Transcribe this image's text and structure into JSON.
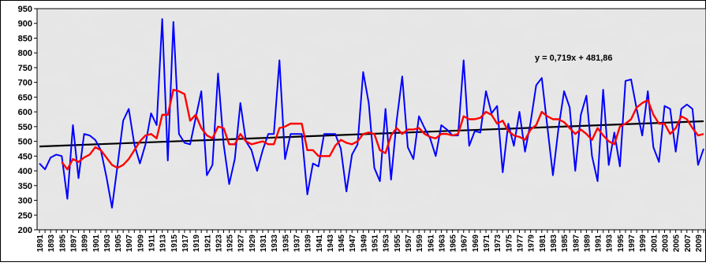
{
  "chart_data": {
    "type": "line",
    "title": "",
    "xlabel": "",
    "ylabel": "",
    "ylim": [
      200,
      950
    ],
    "yticks": [
      200,
      250,
      300,
      350,
      400,
      450,
      500,
      550,
      600,
      650,
      700,
      750,
      800,
      850,
      900,
      950
    ],
    "xlim": [
      1891,
      2010
    ],
    "xtick_labels": [
      1891,
      1893,
      1895,
      1897,
      1899,
      1901,
      1903,
      1905,
      1907,
      1909,
      1911,
      1913,
      1915,
      1917,
      1919,
      1921,
      1923,
      1925,
      1927,
      1929,
      1931,
      1933,
      1935,
      1937,
      1939,
      1941,
      1943,
      1945,
      1947,
      1949,
      1951,
      1953,
      1955,
      1957,
      1959,
      1961,
      1963,
      1965,
      1967,
      1969,
      1971,
      1973,
      1975,
      1977,
      1979,
      1981,
      1983,
      1985,
      1987,
      1989,
      1991,
      1993,
      1995,
      1997,
      1999,
      2001,
      2003,
      2005,
      2007,
      2009
    ],
    "grid": false,
    "background": "marble-texture",
    "series": [
      {
        "style": "annual",
        "color": "#0000ff",
        "x": [
          1891,
          1892,
          1893,
          1894,
          1895,
          1896,
          1897,
          1898,
          1899,
          1900,
          1901,
          1902,
          1903,
          1904,
          1905,
          1906,
          1907,
          1908,
          1909,
          1910,
          1911,
          1912,
          1913,
          1914,
          1915,
          1916,
          1917,
          1918,
          1919,
          1920,
          1921,
          1922,
          1923,
          1924,
          1925,
          1926,
          1927,
          1928,
          1929,
          1930,
          1931,
          1932,
          1933,
          1934,
          1935,
          1936,
          1937,
          1938,
          1939,
          1940,
          1941,
          1942,
          1943,
          1944,
          1945,
          1946,
          1947,
          1948,
          1949,
          1950,
          1951,
          1952,
          1953,
          1954,
          1955,
          1956,
          1957,
          1958,
          1959,
          1960,
          1961,
          1962,
          1963,
          1964,
          1965,
          1966,
          1967,
          1968,
          1969,
          1970,
          1971,
          1972,
          1973,
          1974,
          1975,
          1976,
          1977,
          1978,
          1979,
          1980,
          1981,
          1982,
          1983,
          1984,
          1985,
          1986,
          1987,
          1988,
          1989,
          1990,
          1991,
          1992,
          1993,
          1994,
          1995,
          1996,
          1997,
          1998,
          1999,
          2000,
          2001,
          2002,
          2003,
          2004,
          2005,
          2006,
          2007,
          2008,
          2009,
          2010
        ],
        "y": [
          425,
          405,
          445,
          455,
          450,
          305,
          555,
          375,
          525,
          520,
          505,
          470,
          380,
          275,
          420,
          570,
          610,
          490,
          425,
          490,
          595,
          555,
          915,
          435,
          905,
          525,
          495,
          490,
          580,
          670,
          385,
          420,
          730,
          490,
          355,
          440,
          630,
          500,
          470,
          400,
          470,
          525,
          525,
          775,
          440,
          525,
          525,
          525,
          320,
          425,
          415,
          525,
          525,
          525,
          475,
          330,
          455,
          490,
          735,
          630,
          410,
          365,
          610,
          370,
          570,
          720,
          480,
          440,
          585,
          545,
          510,
          450,
          555,
          540,
          520,
          520,
          775,
          485,
          535,
          530,
          670,
          595,
          620,
          395,
          560,
          485,
          600,
          465,
          565,
          690,
          715,
          550,
          385,
          545,
          670,
          615,
          400,
          590,
          655,
          450,
          365,
          675,
          420,
          530,
          415,
          705,
          710,
          610,
          520,
          670,
          480,
          430,
          620,
          610,
          465,
          610,
          625,
          610,
          420,
          475
        ]
      },
      {
        "style": "moving-average",
        "color": "#ff0000",
        "x": [
          1895,
          1896,
          1897,
          1898,
          1899,
          1900,
          1901,
          1902,
          1903,
          1904,
          1905,
          1906,
          1907,
          1908,
          1909,
          1910,
          1911,
          1912,
          1913,
          1914,
          1915,
          1916,
          1917,
          1918,
          1919,
          1920,
          1921,
          1922,
          1923,
          1924,
          1925,
          1926,
          1927,
          1928,
          1929,
          1930,
          1931,
          1932,
          1933,
          1934,
          1935,
          1936,
          1937,
          1938,
          1939,
          1940,
          1941,
          1942,
          1943,
          1944,
          1945,
          1946,
          1947,
          1948,
          1949,
          1950,
          1951,
          1952,
          1953,
          1954,
          1955,
          1956,
          1957,
          1958,
          1959,
          1960,
          1961,
          1962,
          1963,
          1964,
          1965,
          1966,
          1967,
          1968,
          1969,
          1970,
          1971,
          1972,
          1973,
          1974,
          1975,
          1976,
          1977,
          1978,
          1979,
          1980,
          1981,
          1982,
          1983,
          1984,
          1985,
          1986,
          1987,
          1988,
          1989,
          1990,
          1991,
          1992,
          1993,
          1994,
          1995,
          1996,
          1997,
          1998,
          1999,
          2000,
          2001,
          2002,
          2003,
          2004,
          2005,
          2006,
          2007,
          2008,
          2009,
          2010
        ],
        "y": [
          430,
          405,
          440,
          430,
          445,
          455,
          480,
          470,
          445,
          420,
          410,
          420,
          440,
          470,
          500,
          520,
          525,
          510,
          590,
          590,
          675,
          670,
          660,
          570,
          590,
          545,
          520,
          510,
          550,
          545,
          490,
          490,
          525,
          500,
          490,
          495,
          500,
          490,
          490,
          545,
          550,
          560,
          560,
          560,
          470,
          470,
          450,
          450,
          450,
          485,
          505,
          495,
          490,
          500,
          525,
          530,
          525,
          470,
          460,
          520,
          545,
          525,
          540,
          540,
          545,
          525,
          515,
          510,
          525,
          525,
          520,
          525,
          585,
          575,
          575,
          580,
          600,
          590,
          560,
          570,
          535,
          520,
          515,
          505,
          540,
          555,
          600,
          585,
          575,
          575,
          565,
          545,
          525,
          540,
          525,
          505,
          545,
          520,
          500,
          490,
          550,
          560,
          575,
          615,
          630,
          640,
          590,
          560,
          560,
          525,
          545,
          585,
          575,
          545,
          520,
          525
        ]
      },
      {
        "style": "linear-trend",
        "color": "#000000",
        "equation": "y = 0,719x + 481,86",
        "slope": 0.719,
        "intercept": 481.86
      }
    ]
  }
}
